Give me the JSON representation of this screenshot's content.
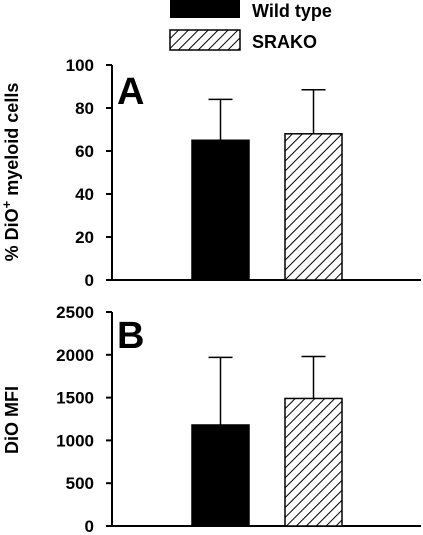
{
  "legend": {
    "items": [
      {
        "label": "Wild type",
        "fill": "solid"
      },
      {
        "label": "SRAKO",
        "fill": "hatched"
      }
    ]
  },
  "colors": {
    "bar": "#000000",
    "background": "#ffffff"
  },
  "chart_data": [
    {
      "type": "bar",
      "panel_label": "A",
      "title": "",
      "ylabel": "% DiO + myeloid cells",
      "ylabel_parts": {
        "text": "% DiO",
        "superscript": "+",
        "suffix": " myeloid cells"
      },
      "xlabel": "",
      "ylim": [
        0,
        100
      ],
      "yticks": [
        0,
        20,
        40,
        60,
        80,
        100
      ],
      "categories": [
        "Wild type",
        "SRAKO"
      ],
      "values": [
        65,
        68
      ],
      "error_upper": [
        84,
        88.5
      ],
      "grid": false
    },
    {
      "type": "bar",
      "panel_label": "B",
      "title": "",
      "ylabel": "DiO MFI",
      "xlabel": "",
      "ylim": [
        0,
        2500
      ],
      "yticks": [
        0,
        500,
        1000,
        1500,
        2000,
        2500
      ],
      "categories": [
        "Wild type",
        "SRAKO"
      ],
      "values": [
        1180,
        1490
      ],
      "error_upper": [
        1970,
        1980
      ],
      "grid": false
    }
  ]
}
